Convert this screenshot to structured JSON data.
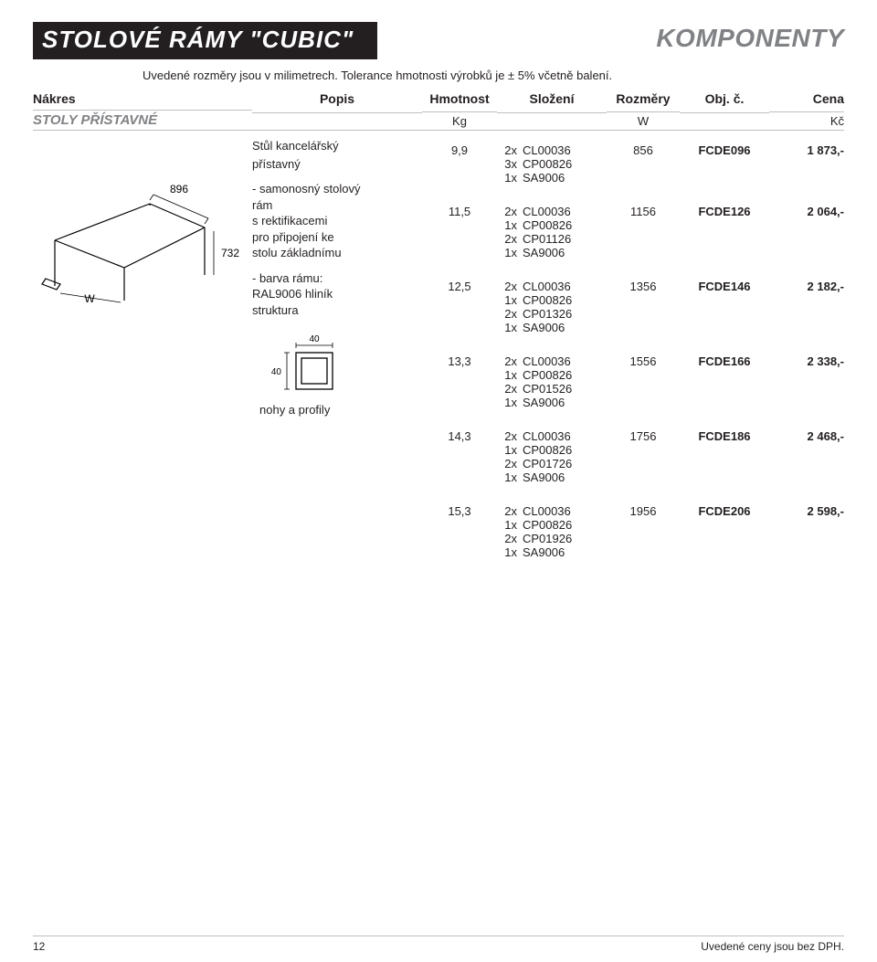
{
  "title_left": "STOLOVÉ RÁMY \"CUBIC\"",
  "title_right": "KOMPONENTY",
  "subtitle": "Uvedené rozměry jsou v milimetrech.  Tolerance hmotnosti výrobků je ± 5% včetně balení.",
  "headers": {
    "nakres": "Nákres",
    "popis": "Popis",
    "hmot": "Hmotnost",
    "sloz": "Složení",
    "rozm": "Rozměry",
    "obj": "Obj. č.",
    "cena": "Cena"
  },
  "section": {
    "label": "STOLY PŘÍSTAVNÉ",
    "unit_weight": "Kg",
    "unit_dim": "W",
    "unit_price": "Kč"
  },
  "popis": {
    "l1": "Stůl kancelářský",
    "l2": "přístavný",
    "l3": "- samonosný stolový",
    "l4": "  rám",
    "l5": "  s rektifikacemi",
    "l6": "  pro připojení ke",
    "l7": "  stolu základnímu",
    "l8": "- barva rámu:",
    "l9": "  RAL9006 hliník",
    "l10": "  struktura",
    "profile_w": "40",
    "profile_h": "40",
    "profile_label": "nohy a profily"
  },
  "drawing": {
    "dim1": "896",
    "dim2": "732",
    "dimW": "W"
  },
  "rows": [
    {
      "weight": "9,9",
      "comp": [
        [
          "2x",
          "CL00036"
        ],
        [
          "3x",
          "CP00826"
        ],
        [
          "1x",
          "SA9006"
        ]
      ],
      "dim": "856",
      "obj": "FCDE096",
      "cena": "1 873,-"
    },
    {
      "weight": "11,5",
      "comp": [
        [
          "2x",
          "CL00036"
        ],
        [
          "1x",
          "CP00826"
        ],
        [
          "2x",
          "CP01126"
        ],
        [
          "1x",
          "SA9006"
        ]
      ],
      "dim": "1156",
      "obj": "FCDE126",
      "cena": "2 064,-"
    },
    {
      "weight": "12,5",
      "comp": [
        [
          "2x",
          "CL00036"
        ],
        [
          "1x",
          "CP00826"
        ],
        [
          "2x",
          "CP01326"
        ],
        [
          "1x",
          "SA9006"
        ]
      ],
      "dim": "1356",
      "obj": "FCDE146",
      "cena": "2 182,-"
    },
    {
      "weight": "13,3",
      "comp": [
        [
          "2x",
          "CL00036"
        ],
        [
          "1x",
          "CP00826"
        ],
        [
          "2x",
          "CP01526"
        ],
        [
          "1x",
          "SA9006"
        ]
      ],
      "dim": "1556",
      "obj": "FCDE166",
      "cena": "2 338,-"
    },
    {
      "weight": "14,3",
      "comp": [
        [
          "2x",
          "CL00036"
        ],
        [
          "1x",
          "CP00826"
        ],
        [
          "2x",
          "CP01726"
        ],
        [
          "1x",
          "SA9006"
        ]
      ],
      "dim": "1756",
      "obj": "FCDE186",
      "cena": "2 468,-"
    },
    {
      "weight": "15,3",
      "comp": [
        [
          "2x",
          "CL00036"
        ],
        [
          "1x",
          "CP00826"
        ],
        [
          "2x",
          "CP01926"
        ],
        [
          "1x",
          "SA9006"
        ]
      ],
      "dim": "1956",
      "obj": "FCDE206",
      "cena": "2 598,-"
    }
  ],
  "footer": {
    "page": "12",
    "note": "Uvedené ceny jsou bez DPH."
  }
}
